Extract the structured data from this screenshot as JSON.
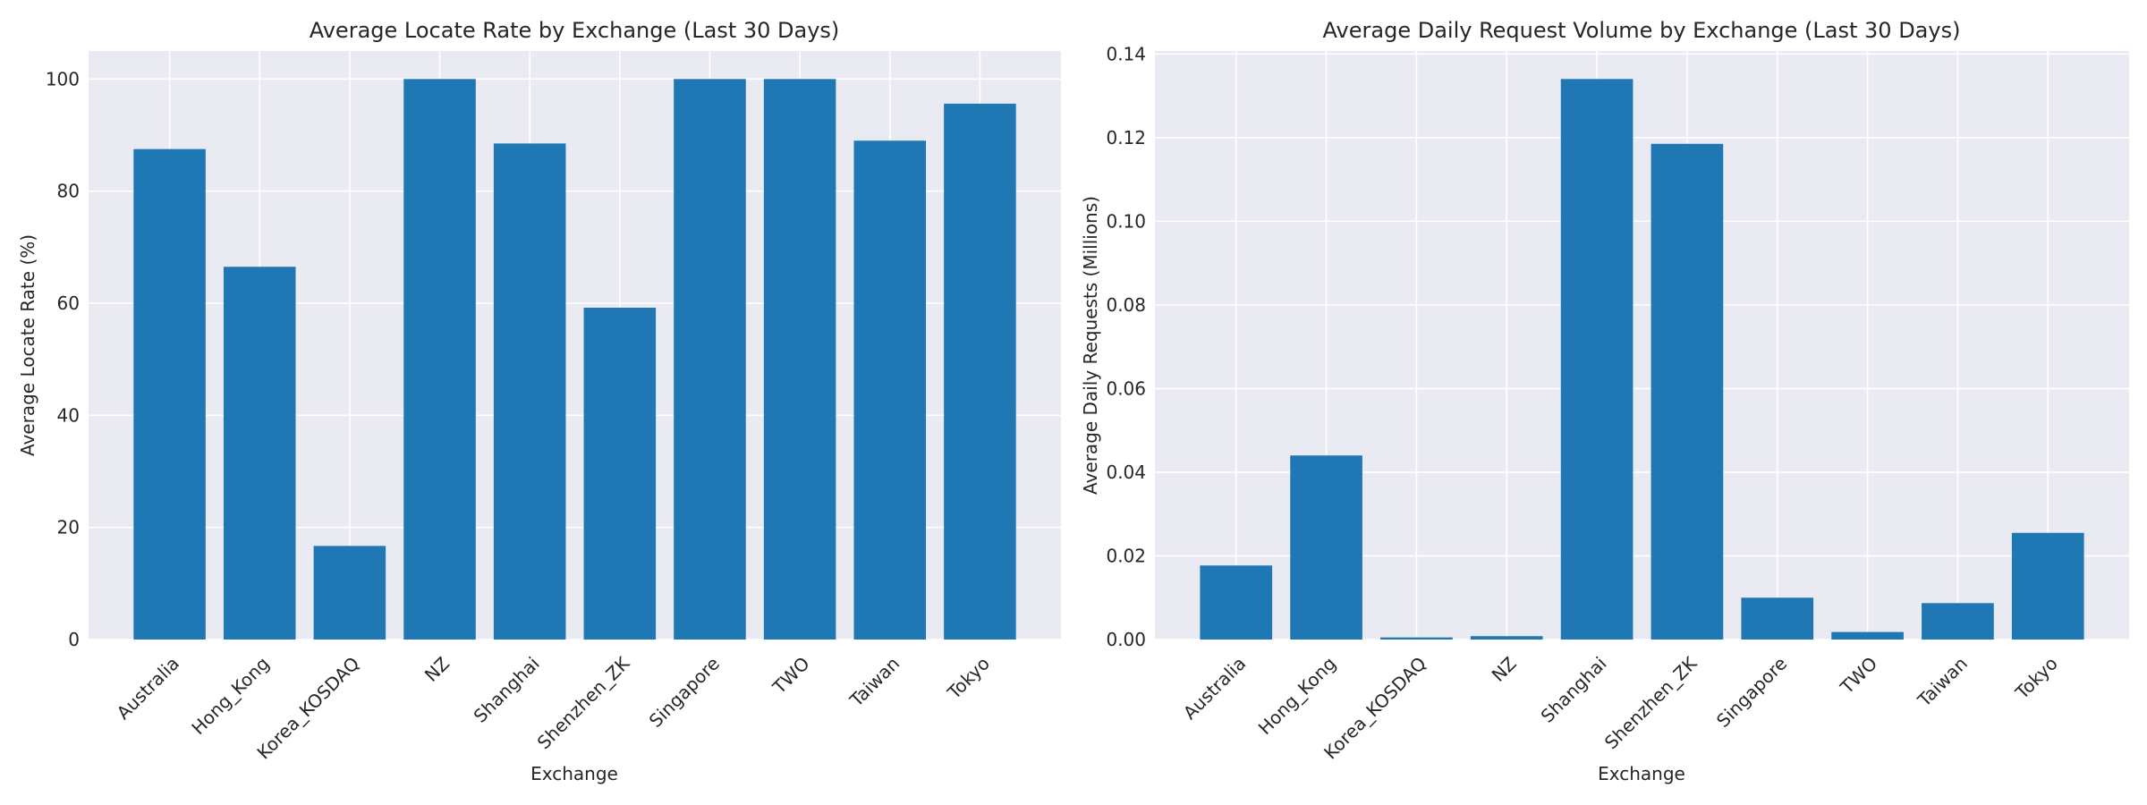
{
  "chart_data": [
    {
      "type": "bar",
      "title": "Average Locate Rate by Exchange (Last 30 Days)",
      "xlabel": "Exchange",
      "ylabel": "Average Locate Rate (%)",
      "categories": [
        "Australia",
        "Hong_Kong",
        "Korea_KOSDAQ",
        "NZ",
        "Shanghai",
        "Shenzhen_ZK",
        "Singapore",
        "TWO",
        "Taiwan",
        "Tokyo"
      ],
      "values": [
        87.5,
        66.5,
        16.7,
        100.0,
        88.5,
        59.2,
        100.0,
        100.0,
        89.0,
        95.6
      ],
      "ylim": [
        0,
        105
      ],
      "yticks": [
        0,
        20,
        40,
        60,
        80,
        100
      ],
      "ytick_labels": [
        "0",
        "20",
        "40",
        "60",
        "80",
        "100"
      ],
      "grid": true,
      "color": "#1f77b4"
    },
    {
      "type": "bar",
      "title": "Average Daily Request Volume by Exchange (Last 30 Days)",
      "xlabel": "Exchange",
      "ylabel": "Average Daily Requests (Millions)",
      "categories": [
        "Australia",
        "Hong_Kong",
        "Korea_KOSDAQ",
        "NZ",
        "Shanghai",
        "Shenzhen_ZK",
        "Singapore",
        "TWO",
        "Taiwan",
        "Tokyo"
      ],
      "values": [
        0.0177,
        0.044,
        0.0005,
        0.0008,
        0.134,
        0.1185,
        0.01,
        0.0018,
        0.0087,
        0.0255
      ],
      "ylim": [
        0,
        0.1407
      ],
      "yticks": [
        0,
        0.02,
        0.04,
        0.06,
        0.08,
        0.1,
        0.12,
        0.14
      ],
      "ytick_labels": [
        "0.00",
        "0.02",
        "0.04",
        "0.06",
        "0.08",
        "0.10",
        "0.12",
        "0.14"
      ],
      "grid": true,
      "color": "#1f77b4"
    }
  ]
}
